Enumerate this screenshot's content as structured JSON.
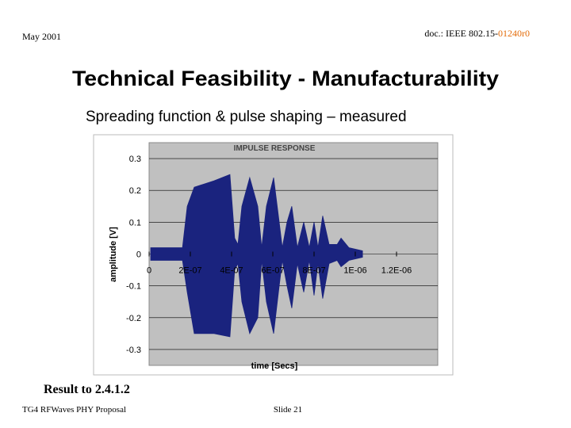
{
  "slide": {
    "date": "May 2001",
    "doc_prefix": "doc.: IEEE 802.15-",
    "doc_number": "01240r0",
    "title": "Technical Feasibility - Manufacturability",
    "subtitle": "Spreading function & pulse shaping – measured",
    "caption": "Result to 2.4.1.2",
    "footer_left": "TG4 RFWaves PHY Proposal",
    "footer_center": "Slide 21"
  },
  "chart_data": {
    "type": "area",
    "title": "IMPULSE RESPONSE",
    "x_label": "time [Secs]",
    "y_label": "amplitude [V]",
    "x": [
      7.7e-09,
      1.62e-07,
      1.85e-07,
      2.19e-07,
      3.15e-07,
      3.92e-07,
      4.15e-07,
      4.31e-07,
      4.5e-07,
      4.88e-07,
      5.27e-07,
      5.46e-07,
      5.69e-07,
      6.04e-07,
      6.31e-07,
      6.46e-07,
      6.69e-07,
      6.92e-07,
      7.19e-07,
      7.5e-07,
      7.77e-07,
      8e-07,
      8.19e-07,
      8.42e-07,
      8.73e-07,
      9.12e-07,
      9.31e-07,
      9.69e-07,
      1.035e-06
    ],
    "series": [
      {
        "color": "#1a237e",
        "values": [
          0.02,
          0.02,
          0.15,
          0.21,
          0.23,
          0.25,
          0.05,
          0.03,
          0.15,
          0.24,
          0.15,
          0.02,
          0.15,
          0.24,
          0.1,
          0.02,
          0.1,
          0.15,
          0.02,
          0.1,
          0.02,
          0.1,
          0.02,
          0.12,
          0.03,
          0.03,
          0.05,
          0.02,
          0.01
        ]
      },
      {
        "color": "#1a237e",
        "values": [
          -0.02,
          -0.02,
          -0.12,
          -0.25,
          -0.25,
          -0.26,
          -0.05,
          -0.03,
          -0.15,
          -0.25,
          -0.2,
          -0.02,
          -0.15,
          -0.25,
          -0.1,
          -0.02,
          -0.1,
          -0.17,
          -0.03,
          -0.12,
          -0.02,
          -0.13,
          -0.03,
          -0.14,
          -0.03,
          -0.02,
          -0.04,
          -0.02,
          -0.01
        ]
      }
    ],
    "xlim": [
      0,
      1.4e-06
    ],
    "xticks": [
      0,
      {
        "value": 2e-07,
        "label": "2E-07"
      },
      {
        "value": 4e-07,
        "label": "4E-07"
      },
      {
        "value": 6e-07,
        "label": "6E-07"
      },
      {
        "value": 8e-07,
        "label": "8E-07"
      },
      {
        "value": 1e-06,
        "label": "1E-06"
      },
      {
        "value": 1.2e-06,
        "label": "1.2E-06"
      }
    ],
    "ylim": [
      -0.35,
      0.35
    ],
    "yticks": [
      -0.3,
      -0.2,
      -0.1,
      0,
      0.1,
      0.2,
      0.3
    ],
    "grid": true
  }
}
